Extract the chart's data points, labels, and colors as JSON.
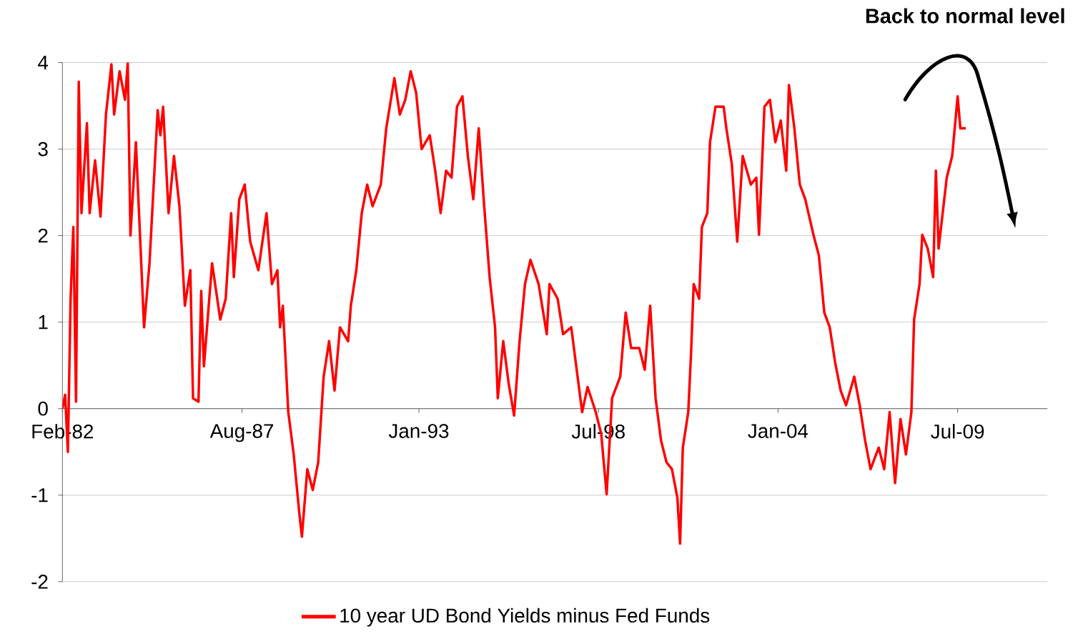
{
  "chart_data": {
    "type": "line",
    "annotations": [
      "Back to normal level"
    ],
    "xlim": [
      "1982-02",
      "2012-04"
    ],
    "xticks": [
      {
        "value": "1982-02",
        "label": "Feb-82"
      },
      {
        "value": "1987-08",
        "label": "Aug-87"
      },
      {
        "value": "1993-01",
        "label": "Jan-93"
      },
      {
        "value": "1998-07",
        "label": "Jul-98"
      },
      {
        "value": "2004-01",
        "label": "Jan-04"
      },
      {
        "value": "2009-07",
        "label": "Jul-09"
      }
    ],
    "ylim": [
      -2,
      4
    ],
    "yticks": [
      -2,
      -1,
      0,
      1,
      2,
      3,
      4
    ],
    "grid": "y",
    "legend": "bottom",
    "line_style": "solid",
    "x": [
      "1982-02",
      "1982-03",
      "1982-04",
      "1982-05",
      "1982-06",
      "1982-07",
      "1982-08",
      "1982-09",
      "1982-11",
      "1982-12",
      "1983-02",
      "1983-04",
      "1983-06",
      "1983-08",
      "1983-09",
      "1983-11",
      "1984-01",
      "1984-02",
      "1984-03",
      "1984-05",
      "1984-08",
      "1984-10",
      "1985-01",
      "1985-02",
      "1985-03",
      "1985-05",
      "1985-07",
      "1985-09",
      "1985-11",
      "1986-01",
      "1986-02",
      "1986-04",
      "1986-05",
      "1986-06",
      "1986-09",
      "1986-12",
      "1987-02",
      "1987-04",
      "1987-05",
      "1987-07",
      "1987-09",
      "1987-11",
      "1988-02",
      "1988-05",
      "1988-07",
      "1988-09",
      "1988-10",
      "1988-11",
      "1989-01",
      "1989-03",
      "1989-05",
      "1989-06",
      "1989-08",
      "1989-10",
      "1989-12",
      "1990-02",
      "1990-04",
      "1990-06",
      "1990-08",
      "1990-11",
      "1990-12",
      "1991-02",
      "1991-04",
      "1991-06",
      "1991-08",
      "1991-11",
      "1992-01",
      "1992-04",
      "1992-06",
      "1992-08",
      "1992-10",
      "1992-12",
      "1993-02",
      "1993-05",
      "1993-07",
      "1993-09",
      "1993-11",
      "1994-01",
      "1994-03",
      "1994-05",
      "1994-07",
      "1994-09",
      "1994-11",
      "1995-01",
      "1995-03",
      "1995-05",
      "1995-06",
      "1995-08",
      "1995-10",
      "1995-12",
      "1996-02",
      "1996-04",
      "1996-06",
      "1996-09",
      "1996-12",
      "1997-01",
      "1997-04",
      "1997-06",
      "1997-09",
      "1997-11",
      "1998-01",
      "1998-03",
      "1998-06",
      "1998-08",
      "1998-10",
      "1998-12",
      "1999-03",
      "1999-05",
      "1999-07",
      "1999-10",
      "1999-12",
      "2000-02",
      "2000-04",
      "2000-06",
      "2000-08",
      "2000-10",
      "2000-12",
      "2001-01",
      "2001-02",
      "2001-04",
      "2001-05",
      "2001-06",
      "2001-08",
      "2001-09",
      "2001-11",
      "2001-12",
      "2002-02",
      "2002-05",
      "2002-06",
      "2002-08",
      "2002-10",
      "2002-12",
      "2003-03",
      "2003-05",
      "2003-06",
      "2003-08",
      "2003-10",
      "2003-12",
      "2004-02",
      "2004-04",
      "2004-05",
      "2004-07",
      "2004-09",
      "2004-11",
      "2005-02",
      "2005-04",
      "2005-06",
      "2005-08",
      "2005-10",
      "2005-12",
      "2006-02",
      "2006-05",
      "2006-07",
      "2006-09",
      "2006-11",
      "2007-02",
      "2007-04",
      "2007-06",
      "2007-08",
      "2007-10",
      "2007-12",
      "2008-02",
      "2008-03",
      "2008-05",
      "2008-06",
      "2008-08",
      "2008-10",
      "2008-11",
      "2008-12",
      "2009-03",
      "2009-05",
      "2009-07",
      "2009-08",
      "2009-10"
    ],
    "series": [
      {
        "name": "10 year UD Bond Yields minus Fed Funds",
        "color": "#ff0000",
        "values": [
          0,
          0.16,
          -0.5,
          1.27,
          2.1,
          0.08,
          3.78,
          2.26,
          3.3,
          2.26,
          2.87,
          2.22,
          3.4,
          3.98,
          3.4,
          3.9,
          3.57,
          4,
          2.0,
          3.08,
          0.94,
          1.68,
          3.45,
          3.16,
          3.49,
          2.26,
          2.92,
          2.34,
          1.19,
          1.6,
          0.12,
          0.08,
          1.36,
          0.49,
          1.68,
          1.03,
          1.27,
          2.26,
          1.52,
          2.42,
          2.59,
          1.93,
          1.6,
          2.26,
          1.44,
          1.6,
          0.94,
          1.19,
          -0.04,
          -0.53,
          -1.19,
          -1.48,
          -0.7,
          -0.94,
          -0.62,
          0.37,
          0.78,
          0.21,
          0.94,
          0.78,
          1.19,
          1.6,
          2.26,
          2.59,
          2.34,
          2.59,
          3.24,
          3.82,
          3.4,
          3.57,
          3.9,
          3.65,
          3.0,
          3.16,
          2.75,
          2.26,
          2.75,
          2.67,
          3.49,
          3.61,
          2.92,
          2.42,
          3.24,
          2.34,
          1.52,
          0.94,
          0.12,
          0.78,
          0.29,
          -0.08,
          0.78,
          1.44,
          1.72,
          1.44,
          0.86,
          1.44,
          1.27,
          0.86,
          0.94,
          0.45,
          -0.04,
          0.25,
          -0.04,
          -0.29,
          -0.99,
          0.12,
          0.37,
          1.11,
          0.7,
          0.7,
          0.45,
          1.19,
          0.12,
          -0.37,
          -0.62,
          -0.7,
          -1.03,
          -1.56,
          -0.45,
          -0.04,
          0.62,
          1.44,
          1.27,
          2.1,
          2.26,
          3.08,
          3.49,
          3.49,
          3.24,
          2.83,
          1.93,
          2.92,
          2.59,
          2.67,
          2.01,
          3.49,
          3.57,
          3.08,
          3.33,
          2.75,
          3.74,
          3.24,
          2.59,
          2.42,
          2.01,
          1.77,
          1.11,
          0.94,
          0.53,
          0.21,
          0.04,
          0.37,
          0.04,
          -0.37,
          -0.7,
          -0.45,
          -0.7,
          -0.04,
          -0.86,
          -0.12,
          -0.53,
          -0.04,
          1.03,
          1.44,
          2.01,
          1.85,
          1.52,
          2.75,
          1.85,
          2.67,
          2.92,
          3.61,
          3.24,
          3.24
        ]
      }
    ]
  }
}
